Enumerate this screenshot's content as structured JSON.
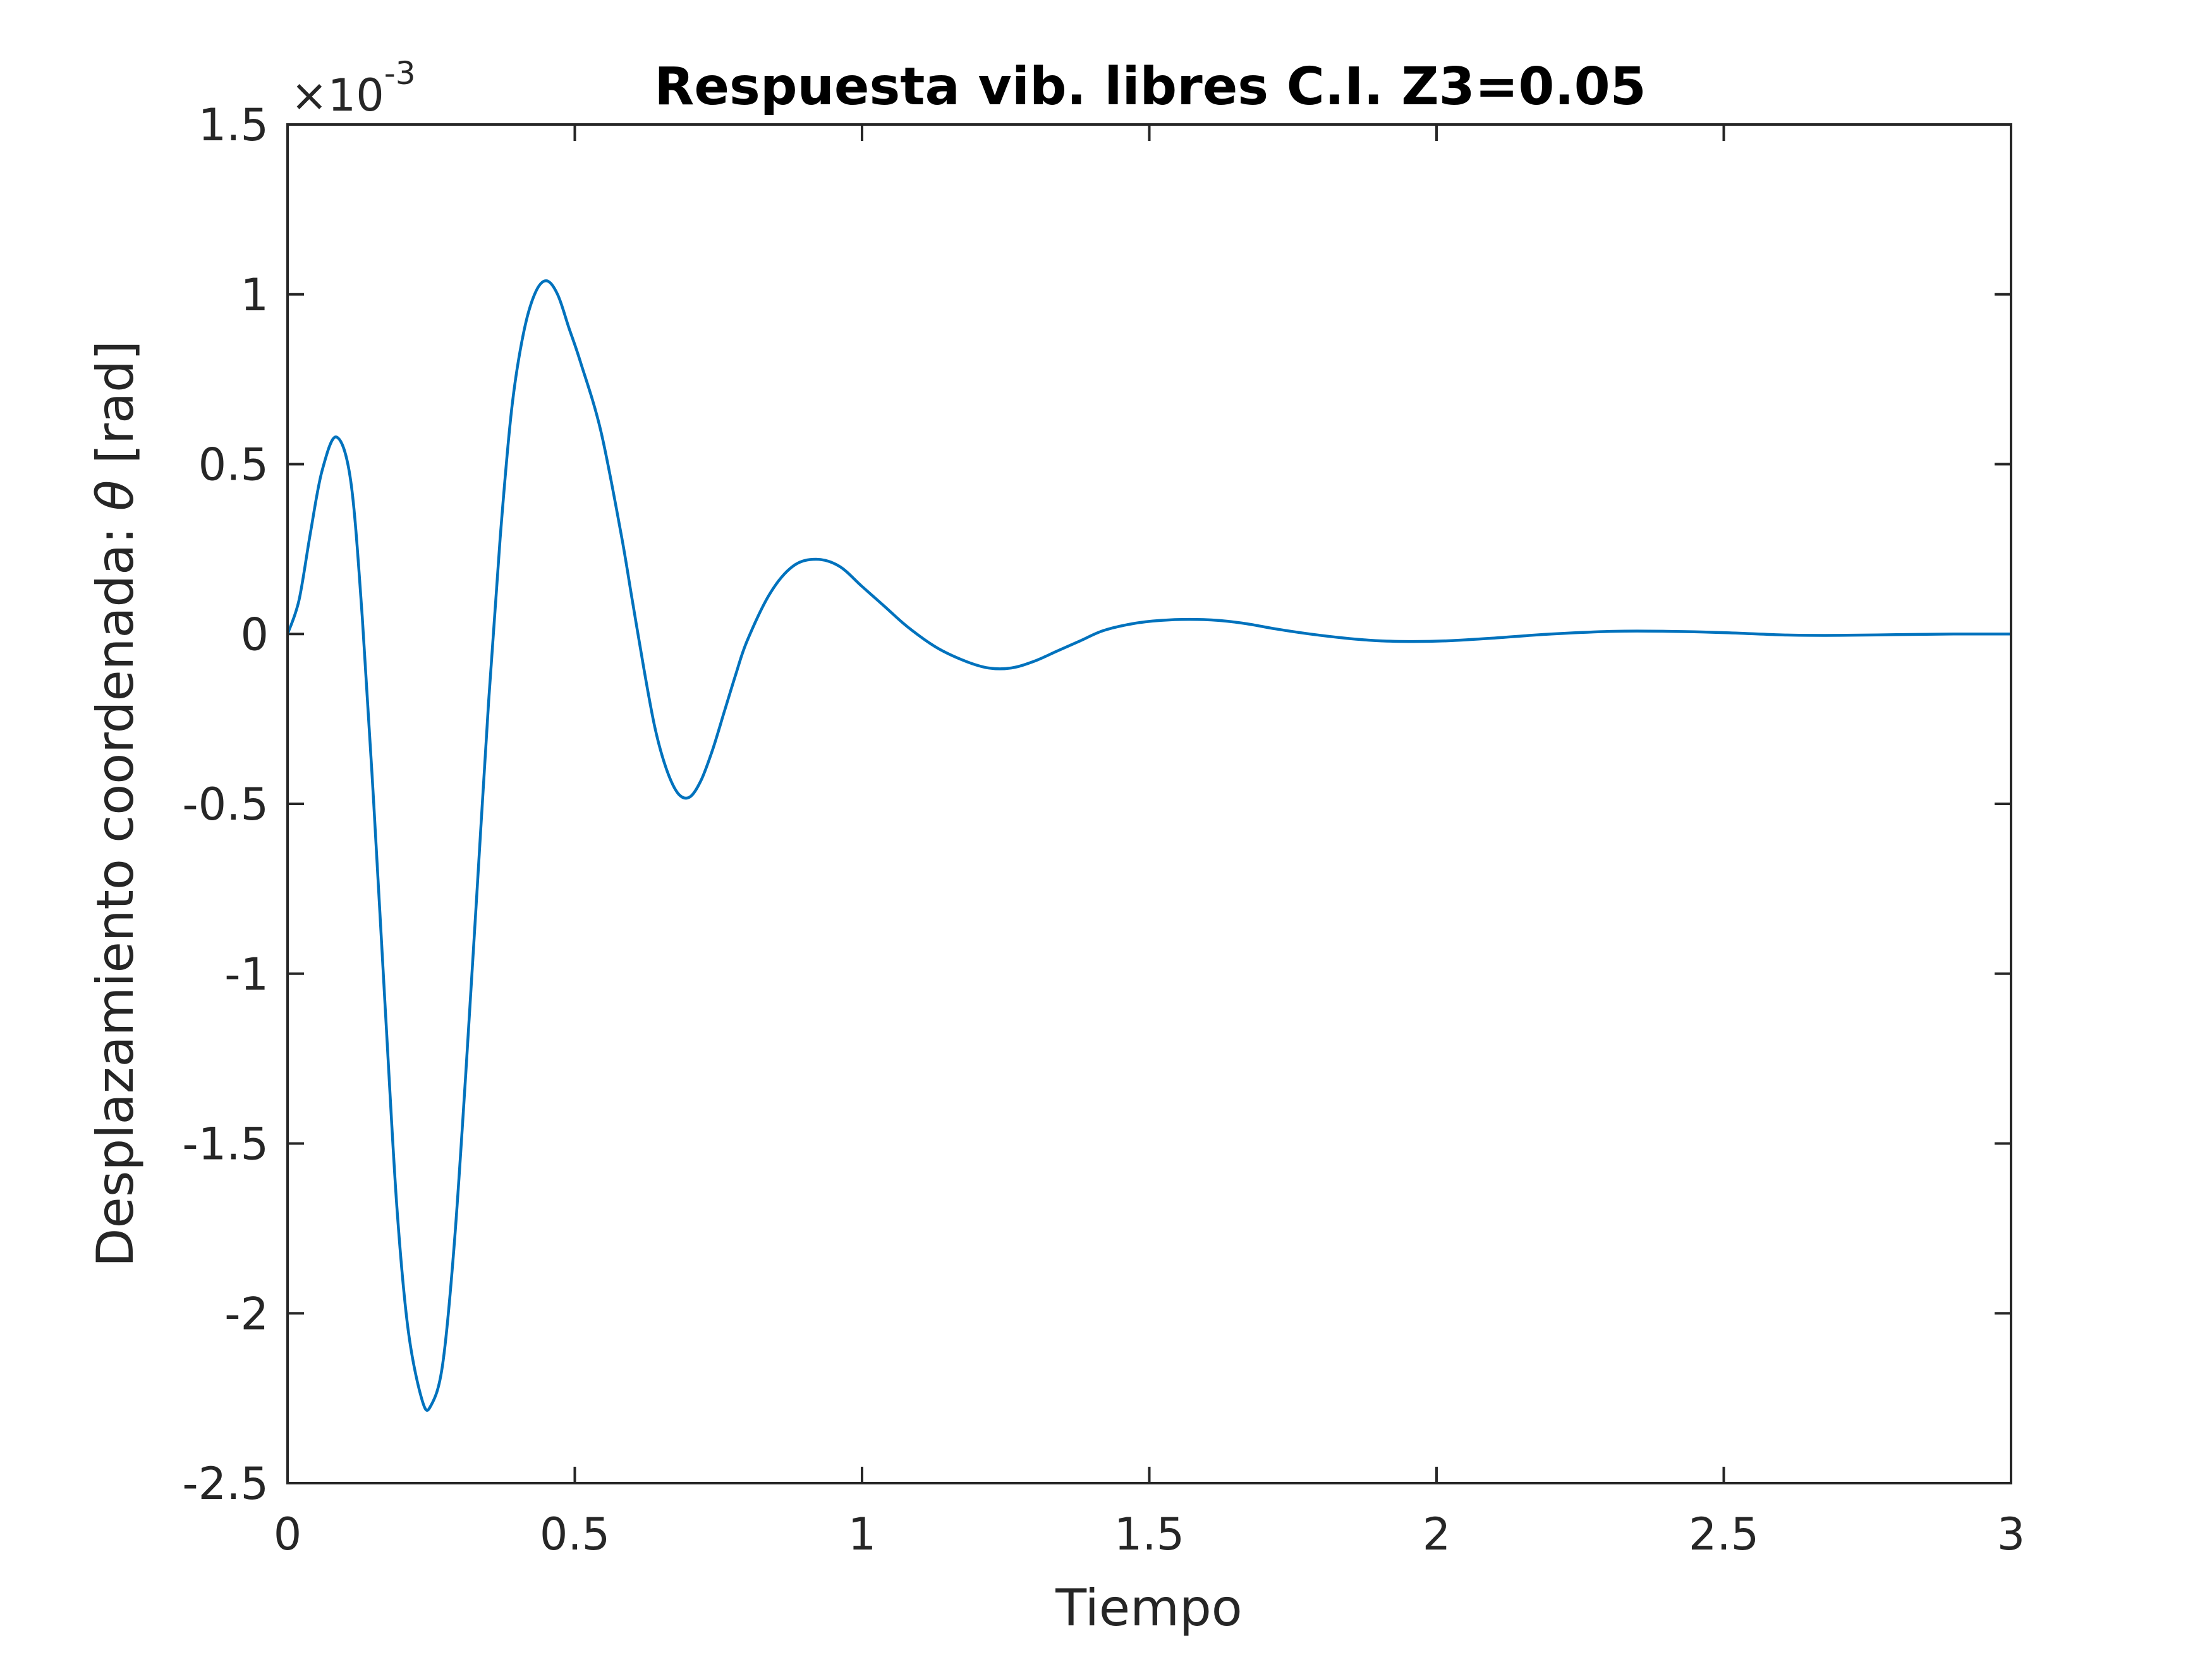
{
  "chart_data": {
    "type": "line",
    "title": "Respuesta vib. libres C.I. Z3=0.05",
    "xlabel": "Tiempo",
    "ylabel_text": "Desplazamiento coordenada: ",
    "ylabel_symbol": "θ",
    "ylabel_unit": " [rad]",
    "ylabel": "Desplazamiento coordenada: θ [rad]",
    "y_multiplier_base": "×10",
    "y_multiplier_exp": "-3",
    "y_scale": 0.001,
    "xlim": [
      0,
      3
    ],
    "ylim": [
      -2.5,
      1.5
    ],
    "xticks": [
      0,
      0.5,
      1,
      1.5,
      2,
      2.5,
      3
    ],
    "xtick_labels": [
      "0",
      "0.5",
      "1",
      "1.5",
      "2",
      "2.5",
      "3"
    ],
    "yticks": [
      1.5,
      1,
      0.5,
      0,
      -0.5,
      -1,
      -1.5,
      -2,
      -2.5
    ],
    "ytick_labels": [
      "1.5",
      "1",
      "0.5",
      "0",
      "-0.5",
      "-1",
      "-1.5",
      "-2",
      "-2.5"
    ],
    "grid": false,
    "series": [
      {
        "color": "#0072BD",
        "x": [
          0,
          0.02,
          0.04,
          0.06,
          0.085,
          0.11,
          0.13,
          0.15,
          0.17,
          0.19,
          0.21,
          0.235,
          0.25,
          0.27,
          0.29,
          0.31,
          0.33,
          0.35,
          0.37,
          0.39,
          0.41,
          0.43,
          0.45,
          0.47,
          0.49,
          0.51,
          0.545,
          0.58,
          0.6,
          0.62,
          0.64,
          0.66,
          0.68,
          0.7,
          0.72,
          0.74,
          0.76,
          0.78,
          0.8,
          0.84,
          0.88,
          0.92,
          0.96,
          1.0,
          1.04,
          1.08,
          1.13,
          1.18,
          1.22,
          1.26,
          1.3,
          1.34,
          1.38,
          1.42,
          1.47,
          1.52,
          1.57,
          1.62,
          1.67,
          1.72,
          1.78,
          1.84,
          1.9,
          1.96,
          2.02,
          2.1,
          2.2,
          2.31,
          2.4,
          2.5,
          2.61,
          2.7,
          2.8,
          2.9,
          3.0
        ],
        "y": [
          0,
          0.1,
          0.3,
          0.48,
          0.58,
          0.45,
          0.05,
          -0.5,
          -1.1,
          -1.68,
          -2.05,
          -2.26,
          -2.27,
          -2.15,
          -1.8,
          -1.3,
          -0.75,
          -0.2,
          0.28,
          0.66,
          0.88,
          1.0,
          1.04,
          1.0,
          0.9,
          0.8,
          0.6,
          0.3,
          0.1,
          -0.1,
          -0.28,
          -0.4,
          -0.47,
          -0.48,
          -0.43,
          -0.34,
          -0.23,
          -0.12,
          -0.02,
          0.12,
          0.2,
          0.22,
          0.2,
          0.14,
          0.08,
          0.02,
          -0.04,
          -0.08,
          -0.1,
          -0.1,
          -0.08,
          -0.05,
          -0.02,
          0.01,
          0.03,
          0.04,
          0.043,
          0.04,
          0.03,
          0.015,
          0.0,
          -0.012,
          -0.02,
          -0.022,
          -0.02,
          -0.012,
          0.0,
          0.008,
          0.008,
          0.004,
          -0.003,
          -0.004,
          -0.002,
          0.0,
          0.0
        ]
      }
    ]
  }
}
